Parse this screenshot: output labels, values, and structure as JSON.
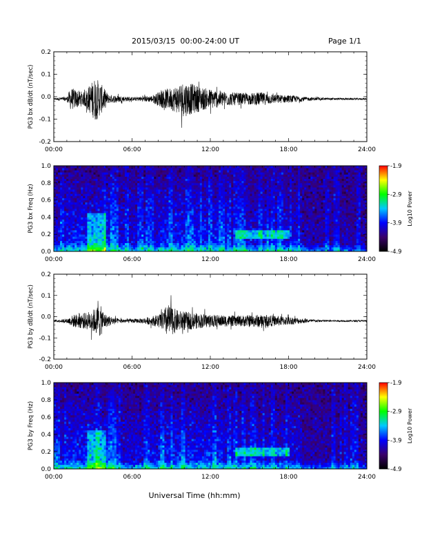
{
  "header": {
    "title": "2015/03/15  00:00-24:00 UT",
    "page": "Page 1/1"
  },
  "xaxis": {
    "label": "Universal Time (hh:mm)",
    "ticks": [
      "00:00",
      "06:00",
      "12:00",
      "18:00",
      "24:00"
    ],
    "range_hours": [
      0,
      24
    ]
  },
  "colors": {
    "trace": "#000000",
    "colormap": [
      "#000000",
      "#3a006a",
      "#0000ff",
      "#00c8ff",
      "#00ff00",
      "#ffff00",
      "#ff0000"
    ]
  },
  "chart_data": [
    {
      "type": "line",
      "ylabel": "PG3 bx dB/dt (nT/sec)",
      "ylim": [
        -0.2,
        0.2
      ],
      "yticks": [
        "0.2",
        "0.1",
        "0.0",
        "-0.1",
        "-0.2"
      ],
      "xlim": [
        0,
        24
      ],
      "series": [
        {
          "color": "#000000",
          "baseline": -0.01,
          "amplitude_envelope": [
            [
              0,
              0.004
            ],
            [
              1.0,
              0.01
            ],
            [
              1.3,
              0.05
            ],
            [
              1.8,
              0.04
            ],
            [
              2.3,
              0.03
            ],
            [
              2.7,
              0.06
            ],
            [
              3.2,
              0.1
            ],
            [
              3.6,
              0.07
            ],
            [
              4.2,
              0.02
            ],
            [
              6,
              0.008
            ],
            [
              7.5,
              0.015
            ],
            [
              8.3,
              0.04
            ],
            [
              9.0,
              0.05
            ],
            [
              10.0,
              0.08
            ],
            [
              10.5,
              0.07
            ],
            [
              11.5,
              0.05
            ],
            [
              12.5,
              0.04
            ],
            [
              13.5,
              0.03
            ],
            [
              15.0,
              0.025
            ],
            [
              15.8,
              0.03
            ],
            [
              17.0,
              0.02
            ],
            [
              18.5,
              0.015
            ],
            [
              19.5,
              0.008
            ],
            [
              21,
              0.005
            ],
            [
              24,
              0.004
            ]
          ]
        }
      ]
    },
    {
      "type": "heatmap",
      "ylabel": "PG3 bx Freq (Hz)",
      "ylim": [
        0.0,
        1.0
      ],
      "yticks": [
        "1.0",
        "0.8",
        "0.6",
        "0.4",
        "0.2",
        "0.0"
      ],
      "xlim": [
        0,
        24
      ],
      "colorbar": {
        "label": "Log10 Power",
        "ticks": [
          "-1.9",
          "-2.9",
          "-3.9",
          "-4.9"
        ],
        "range": [
          -4.9,
          -1.9
        ]
      },
      "features": {
        "background_level": -4.3,
        "low_freq_band": {
          "freq_max": 0.1,
          "level": -3.0
        },
        "band_15_18h": {
          "hours": [
            14,
            18
          ],
          "freq": 0.2,
          "level": -3.0
        }
      }
    },
    {
      "type": "line",
      "ylabel": "PG3 by dB/dt (nT/sec)",
      "ylim": [
        -0.2,
        0.2
      ],
      "yticks": [
        "0.2",
        "0.1",
        "0.0",
        "-0.1",
        "-0.2"
      ],
      "xlim": [
        0,
        24
      ],
      "series": [
        {
          "color": "#000000",
          "baseline": -0.02,
          "amplitude_envelope": [
            [
              0,
              0.004
            ],
            [
              1.0,
              0.01
            ],
            [
              1.5,
              0.03
            ],
            [
              2.5,
              0.04
            ],
            [
              3.2,
              0.06
            ],
            [
              3.5,
              0.08
            ],
            [
              4.0,
              0.03
            ],
            [
              5,
              0.01
            ],
            [
              6.5,
              0.01
            ],
            [
              7.5,
              0.02
            ],
            [
              8.3,
              0.04
            ],
            [
              8.7,
              0.08
            ],
            [
              9.5,
              0.05
            ],
            [
              10.5,
              0.04
            ],
            [
              12.0,
              0.03
            ],
            [
              14.0,
              0.025
            ],
            [
              15.5,
              0.03
            ],
            [
              17.0,
              0.025
            ],
            [
              18.0,
              0.02
            ],
            [
              19.5,
              0.008
            ],
            [
              21,
              0.004
            ],
            [
              24,
              0.004
            ]
          ]
        }
      ]
    },
    {
      "type": "heatmap",
      "ylabel": "PG3 by Freq (Hz)",
      "ylim": [
        0.0,
        1.0
      ],
      "yticks": [
        "1.0",
        "0.8",
        "0.6",
        "0.4",
        "0.2",
        "0.0"
      ],
      "xlim": [
        0,
        24
      ],
      "colorbar": {
        "label": "Log10 Power",
        "ticks": [
          "-1.9",
          "-2.9",
          "-3.9",
          "-4.9"
        ],
        "range": [
          -4.9,
          -1.9
        ]
      },
      "features": {
        "background_level": -4.3,
        "low_freq_band": {
          "freq_max": 0.1,
          "level": -3.0
        },
        "band_15_18h": {
          "hours": [
            14,
            18
          ],
          "freq": 0.2,
          "level": -3.0
        }
      }
    }
  ]
}
